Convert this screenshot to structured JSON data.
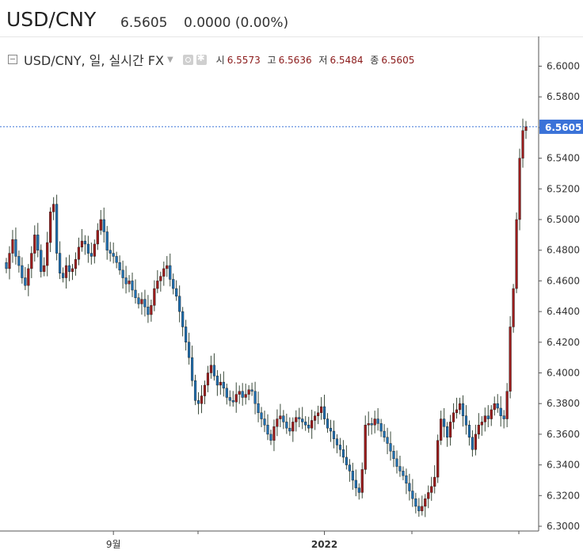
{
  "header": {
    "symbol": "USD/CNY",
    "price": "6.5605",
    "change": "0.0000 (0.00%)"
  },
  "legend": {
    "title": "USD/CNY, 일, 실시간 FX",
    "open_label": "시",
    "open": "6.5573",
    "high_label": "고",
    "high": "6.5636",
    "low_label": "저",
    "low": "6.5484",
    "close_label": "종",
    "close": "6.5605"
  },
  "colors": {
    "up": "#9b1c1c",
    "down": "#1f6fb0",
    "wick": "#3a4a3a",
    "price_tag": "#3a72d8",
    "grid_line": "#3a72d8"
  },
  "chart_data": {
    "type": "candlestick",
    "ylim": [
      6.288,
      6.608
    ],
    "y_ticks": [
      6.3,
      6.32,
      6.34,
      6.36,
      6.38,
      6.4,
      6.42,
      6.44,
      6.46,
      6.48,
      6.5,
      6.52,
      6.54,
      6.56,
      6.58,
      6.6
    ],
    "x_ticks": [
      {
        "label": "9월",
        "index": 34
      },
      {
        "label": "2022",
        "index": 101
      }
    ],
    "last_price": 6.5605,
    "closes": [
      6.468,
      6.478,
      6.487,
      6.476,
      6.47,
      6.462,
      6.457,
      6.468,
      6.478,
      6.49,
      6.48,
      6.466,
      6.47,
      6.485,
      6.505,
      6.51,
      6.478,
      6.465,
      6.462,
      6.47,
      6.466,
      6.468,
      6.474,
      6.482,
      6.486,
      6.484,
      6.478,
      6.476,
      6.484,
      6.493,
      6.5,
      6.492,
      6.48,
      6.478,
      6.476,
      6.472,
      6.467,
      6.462,
      6.458,
      6.46,
      6.454,
      6.449,
      6.445,
      6.448,
      6.443,
      6.438,
      6.444,
      6.455,
      6.46,
      6.463,
      6.468,
      6.47,
      6.461,
      6.455,
      6.45,
      6.44,
      6.43,
      6.42,
      6.41,
      6.395,
      6.382,
      6.38,
      6.385,
      6.392,
      6.4,
      6.405,
      6.398,
      6.392,
      6.394,
      6.39,
      6.384,
      6.382,
      6.381,
      6.386,
      6.388,
      6.384,
      6.386,
      6.389,
      6.388,
      6.38,
      6.374,
      6.37,
      6.366,
      6.36,
      6.356,
      6.365,
      6.37,
      6.372,
      6.368,
      6.364,
      6.362,
      6.368,
      6.371,
      6.37,
      6.368,
      6.366,
      6.364,
      6.369,
      6.372,
      6.374,
      6.378,
      6.37,
      6.364,
      6.362,
      6.357,
      6.353,
      6.35,
      6.345,
      6.34,
      6.336,
      6.33,
      6.325,
      6.322,
      6.337,
      6.366,
      6.367,
      6.366,
      6.37,
      6.367,
      6.362,
      6.358,
      6.354,
      6.349,
      6.344,
      6.339,
      6.336,
      6.333,
      6.328,
      6.323,
      6.318,
      6.313,
      6.31,
      6.313,
      6.318,
      6.322,
      6.326,
      6.332,
      6.356,
      6.37,
      6.365,
      6.358,
      6.368,
      6.374,
      6.376,
      6.38,
      6.372,
      6.366,
      6.358,
      6.35,
      6.36,
      6.366,
      6.368,
      6.372,
      6.37,
      6.376,
      6.38,
      6.377,
      6.372,
      6.37,
      6.388,
      6.43,
      6.455,
      6.5,
      6.54,
      6.558,
      6.5605
    ]
  }
}
